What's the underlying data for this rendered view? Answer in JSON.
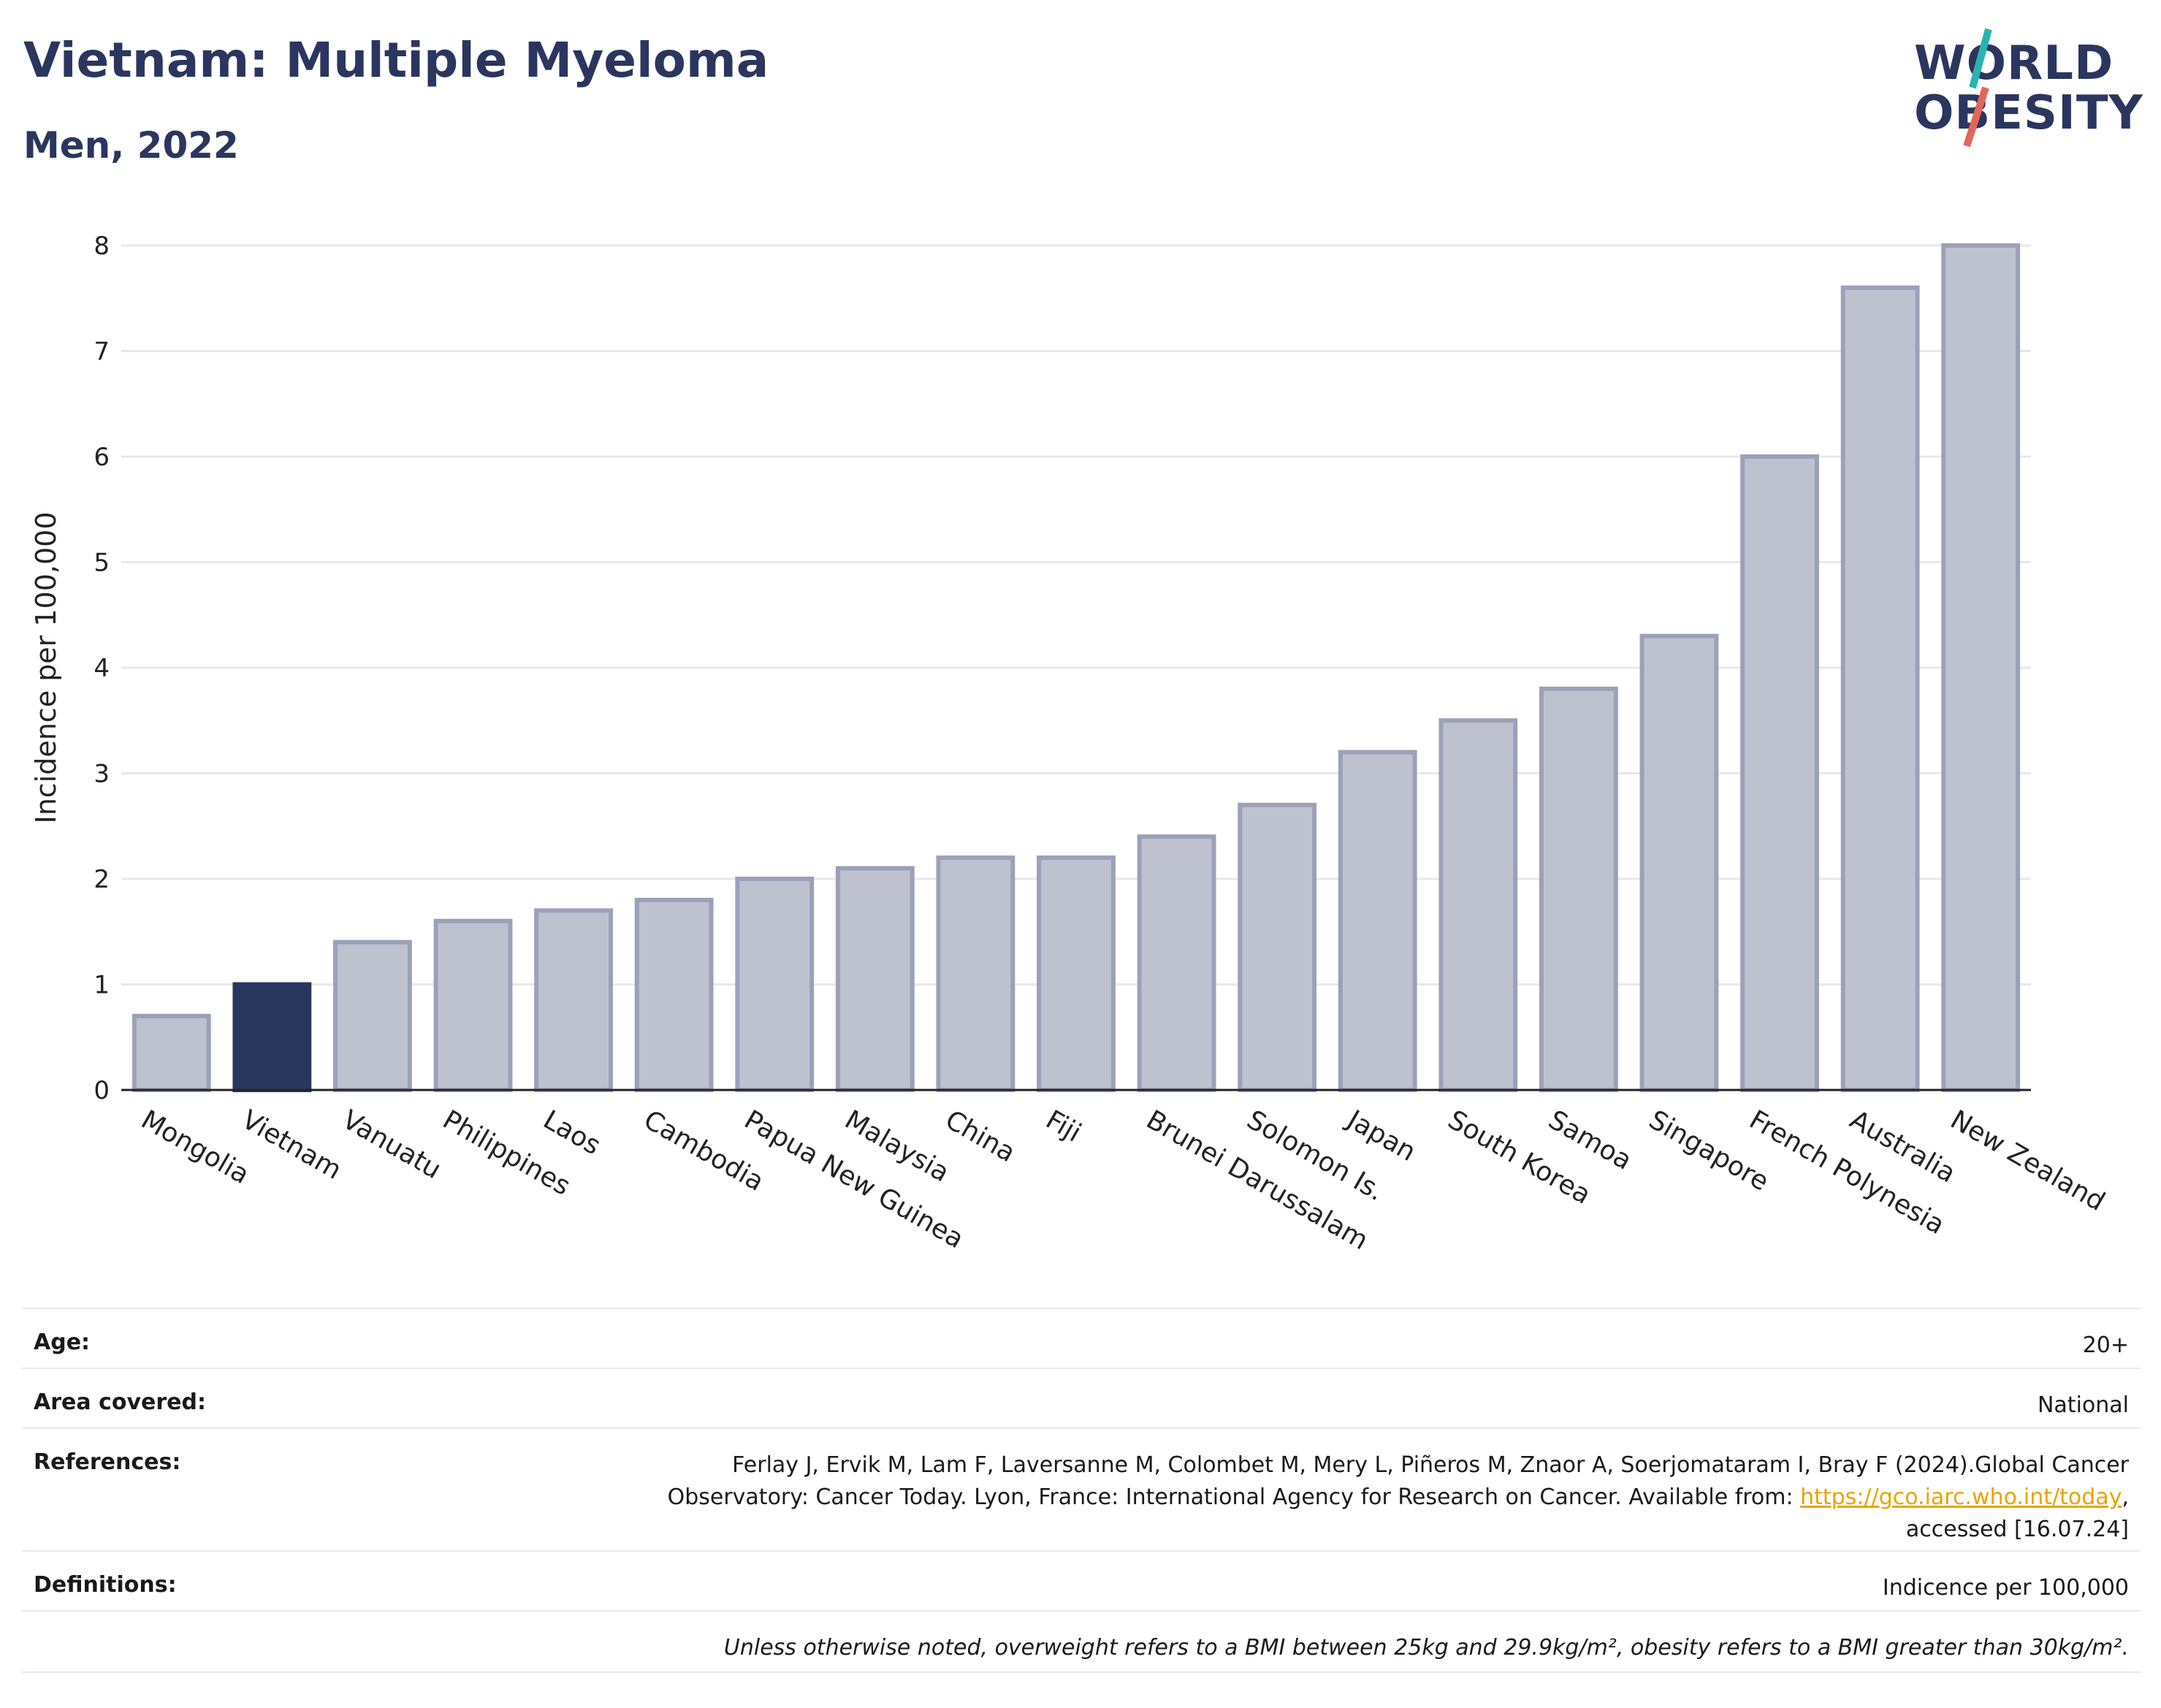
{
  "header": {
    "title": "Vietnam: Multiple Myeloma",
    "subtitle": "Men, 2022"
  },
  "logo": {
    "line1": "WORLD",
    "line2": "OBESITY",
    "slash_colors": [
      "#2ab3b1",
      "#e4665a"
    ]
  },
  "chart_data": {
    "type": "bar",
    "ylabel": "Incidence per 100,000",
    "xlabel": "",
    "ylim": [
      0,
      8
    ],
    "yticks": [
      0,
      1,
      2,
      3,
      4,
      5,
      6,
      7,
      8
    ],
    "grid": true,
    "highlight": "Vietnam",
    "colors": {
      "bar": "#bec2cf",
      "bar_border": "#9ba1b8",
      "highlight": "#2b365f"
    },
    "categories": [
      "Mongolia",
      "Vietnam",
      "Vanuatu",
      "Philippines",
      "Laos",
      "Cambodia",
      "Papua New Guinea",
      "Malaysia",
      "China",
      "Fiji",
      "Brunei Darussalam",
      "Solomon Is.",
      "Japan",
      "South Korea",
      "Samoa",
      "Singapore",
      "French Polynesia",
      "Australia",
      "New Zealand"
    ],
    "values": [
      0.7,
      1.0,
      1.4,
      1.6,
      1.7,
      1.8,
      2.0,
      2.1,
      2.2,
      2.2,
      2.4,
      2.7,
      3.2,
      3.5,
      3.8,
      4.3,
      6.0,
      7.6,
      8.0
    ]
  },
  "meta": {
    "age": {
      "label": "Age:",
      "value": "20+"
    },
    "area": {
      "label": "Area covered:",
      "value": "National"
    },
    "references": {
      "label": "References:",
      "line1": "Ferlay J, Ervik M, Lam F, Laversanne M, Colombet M, Mery L, Piñeros M, Znaor A, Soerjomataram I, Bray F (2024).Global Cancer",
      "line2_pre": "Observatory: Cancer Today. Lyon, France: International Agency for Research on Cancer. Available from: ",
      "link": "https://gco.iarc.who.int/today",
      "line2_post": ",",
      "line3": "accessed [16.07.24]"
    },
    "definitions": {
      "label": "Definitions:",
      "value": "Indicence per 100,000"
    },
    "note": "Unless otherwise noted, overweight refers to a BMI between 25kg and 29.9kg/m², obesity refers to a BMI greater than 30kg/m²."
  }
}
